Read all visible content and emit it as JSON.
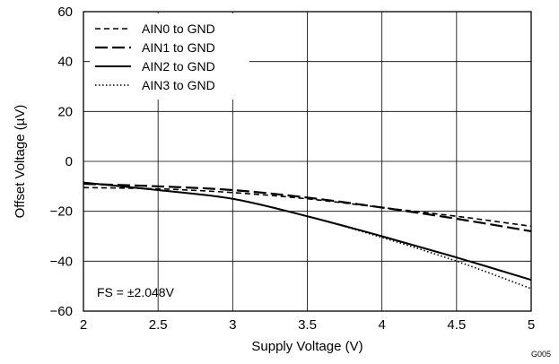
{
  "chart_data": {
    "type": "line",
    "title": "",
    "xlabel": "Supply Voltage (V)",
    "ylabel": "Offset Voltage (µV)",
    "xlim": [
      2,
      5
    ],
    "ylim": [
      -60,
      60
    ],
    "xticks": [
      "2",
      "2.5",
      "3",
      "3.5",
      "4",
      "4.5",
      "5"
    ],
    "yticks": [
      "60",
      "40",
      "20",
      "0",
      "−20",
      "−40",
      "−60"
    ],
    "grid": true,
    "legend_position": "top-left",
    "series": [
      {
        "name": "AIN0 to GND",
        "style": "short-dash",
        "x": [
          2,
          2.5,
          3,
          3.5,
          4,
          4.5,
          5
        ],
        "y": [
          -10.5,
          -11,
          -12.5,
          -15,
          -18.5,
          -22,
          -26
        ]
      },
      {
        "name": "AIN1 to GND",
        "style": "long-dash",
        "x": [
          2,
          2.5,
          3,
          3.5,
          4,
          4.5,
          5
        ],
        "y": [
          -9,
          -10,
          -11.5,
          -14.5,
          -18.5,
          -23,
          -28
        ]
      },
      {
        "name": "AIN2 to GND",
        "style": "solid",
        "x": [
          2,
          2.5,
          3,
          3.5,
          4,
          4.5,
          5
        ],
        "y": [
          -8.5,
          -11.5,
          -15,
          -22,
          -30,
          -38.5,
          -47.5
        ]
      },
      {
        "name": "AIN3 to GND",
        "style": "dotted",
        "x": [
          2,
          2.5,
          3,
          3.5,
          4,
          4.5,
          5
        ],
        "y": [
          -8.5,
          -11.5,
          -15,
          -22,
          -30.5,
          -40,
          -51
        ]
      }
    ],
    "annotations": [
      "FS = ±2.048V"
    ],
    "figure_id": "G005"
  }
}
